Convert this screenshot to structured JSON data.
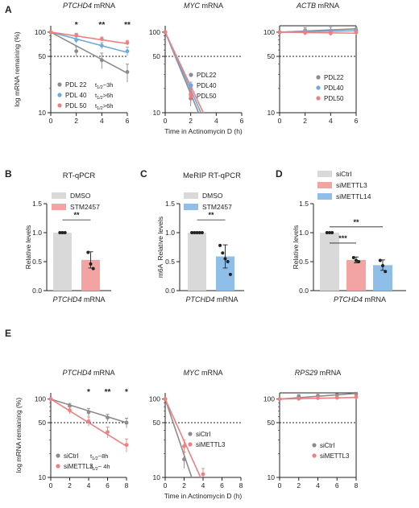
{
  "chart_data": [
    {
      "panel": "A",
      "type": "line",
      "title": "PTCHD4",
      "title_suffix": "mRNA",
      "ylabel": "log mRNA remaining (%)",
      "yscale": "log",
      "ylim": [
        10,
        120
      ],
      "yticks": [
        10,
        50,
        100
      ],
      "xlim": [
        0,
        6
      ],
      "xticks": [
        0,
        2,
        4,
        6
      ],
      "reference_line": 50,
      "legend": [
        {
          "name": "PDL 22",
          "note": "t1/2~3h"
        },
        {
          "name": "PDL 40",
          "note": "t1/2>6h"
        },
        {
          "name": "PDL 50",
          "note": "t1/2>6h"
        }
      ],
      "series": [
        {
          "name": "PDL 22",
          "color": "#8c8c8c",
          "x": [
            0,
            2,
            4,
            6
          ],
          "y": [
            100,
            58,
            45,
            32
          ],
          "err": [
            0,
            8,
            10,
            8
          ],
          "fit_end": 31
        },
        {
          "name": "PDL 40",
          "color": "#6fa8dc",
          "x": [
            0,
            2,
            4,
            6
          ],
          "y": [
            100,
            80,
            68,
            58
          ],
          "err": [
            0,
            7,
            6,
            7
          ],
          "fit_end": 56
        },
        {
          "name": "PDL 50",
          "color": "#f08080",
          "x": [
            0,
            2,
            4,
            6
          ],
          "y": [
            100,
            92,
            82,
            74
          ],
          "err": [
            0,
            5,
            5,
            5
          ],
          "fit_end": 72
        }
      ],
      "significance": [
        {
          "x": 2,
          "label": "*"
        },
        {
          "x": 4,
          "label": "**"
        },
        {
          "x": 6,
          "label": "**"
        }
      ]
    },
    {
      "panel": "A",
      "type": "line",
      "title": "MYC",
      "title_suffix": "mRNA",
      "yscale": "log",
      "ylim": [
        10,
        120
      ],
      "yticks": [
        10,
        50,
        100
      ],
      "xlim": [
        0,
        6
      ],
      "xticks": [
        0,
        2,
        4,
        6
      ],
      "reference_line": 50,
      "xlabel": "Time in Actinomycin D (h)",
      "legend": [
        {
          "name": "PDL22"
        },
        {
          "name": "PDL40"
        },
        {
          "name": "PDL50"
        }
      ],
      "series": [
        {
          "name": "PDL22",
          "color": "#8c8c8c",
          "x": [
            0,
            2
          ],
          "y": [
            100,
            15
          ],
          "err": [
            0,
            3
          ],
          "fit_end_x": 2.8
        },
        {
          "name": "PDL40",
          "color": "#6fa8dc",
          "x": [
            0,
            2
          ],
          "y": [
            100,
            20
          ],
          "err": [
            0,
            4
          ],
          "fit_end_x": 3.0
        },
        {
          "name": "PDL50",
          "color": "#f08080",
          "x": [
            0,
            2
          ],
          "y": [
            100,
            17
          ],
          "err": [
            0,
            4
          ],
          "fit_end_x": 3.2
        }
      ]
    },
    {
      "panel": "A",
      "type": "line",
      "title": "ACTB",
      "title_suffix": "mRNA",
      "yscale": "log",
      "ylim": [
        10,
        120
      ],
      "yticks": [
        10,
        50,
        100
      ],
      "xlim": [
        0,
        6
      ],
      "xticks": [
        0,
        2,
        4,
        6
      ],
      "reference_line": 50,
      "legend": [
        {
          "name": "PDL22"
        },
        {
          "name": "PDL40"
        },
        {
          "name": "PDL50"
        }
      ],
      "series": [
        {
          "name": "PDL22",
          "color": "#8c8c8c",
          "x": [
            0,
            2,
            4,
            6
          ],
          "y": [
            100,
            105,
            104,
            106
          ],
          "err": [
            0,
            9,
            11,
            8
          ],
          "fit_end": 110
        },
        {
          "name": "PDL40",
          "color": "#6fa8dc",
          "x": [
            0,
            2,
            4,
            6
          ],
          "y": [
            100,
            102,
            100,
            102
          ],
          "err": [
            0,
            7,
            8,
            7
          ],
          "fit_end": 104
        },
        {
          "name": "PDL50",
          "color": "#f08080",
          "x": [
            0,
            2,
            4,
            6
          ],
          "y": [
            100,
            98,
            97,
            99
          ],
          "err": [
            0,
            6,
            7,
            6
          ],
          "fit_end": 97
        }
      ]
    },
    {
      "panel": "B",
      "type": "bar",
      "title": "RT-qPCR",
      "ylabel": "Relative levels",
      "xlabel": "PTCHD4",
      "xlabel_suffix": "mRNA",
      "ylim": [
        0,
        1.5
      ],
      "yticks": [
        0,
        0.5,
        1.0,
        1.5
      ],
      "ytick_labels": [
        "0.0",
        "0.5",
        "1.0",
        "1.5"
      ],
      "legend": [
        {
          "name": "DMSO",
          "color": "#d9d9d9"
        },
        {
          "name": "STM2457",
          "color": "#f4a3a3"
        }
      ],
      "bars": [
        {
          "name": "DMSO",
          "value": 1.0,
          "err": 0,
          "points": [
            1.0,
            1.0,
            1.0
          ]
        },
        {
          "name": "STM2457",
          "value": 0.53,
          "err": 0.14,
          "points": [
            0.66,
            0.46,
            0.38
          ]
        }
      ],
      "significance": [
        {
          "label": "**"
        }
      ]
    },
    {
      "panel": "C",
      "type": "bar",
      "title": "MeRIP RT-qPCR",
      "ylabel": "m6A",
      "ylabel_suffix": "Relative levels",
      "xlabel": "PTCHD4",
      "xlabel_suffix": "mRNA",
      "ylim": [
        0,
        1.5
      ],
      "yticks": [
        0,
        0.5,
        1.0,
        1.5
      ],
      "ytick_labels": [
        "0.0",
        "0.5",
        "1.0",
        "1.5"
      ],
      "legend": [
        {
          "name": "DMSO",
          "color": "#d9d9d9"
        },
        {
          "name": "STM2457",
          "color": "#8fbfe8"
        }
      ],
      "bars": [
        {
          "name": "DMSO",
          "value": 1.0,
          "err": 0,
          "points": [
            1.0,
            1.0,
            1.0,
            1.0,
            1.0
          ]
        },
        {
          "name": "STM2457",
          "value": 0.59,
          "err": 0.2,
          "points": [
            0.78,
            0.65,
            0.55,
            0.5,
            0.28
          ]
        }
      ],
      "significance": [
        {
          "label": "**"
        }
      ]
    },
    {
      "panel": "D",
      "type": "bar",
      "ylabel": "Relative levels",
      "xlabel": "PTCHD4",
      "xlabel_suffix": "mRNA",
      "ylim": [
        0,
        1.5
      ],
      "yticks": [
        0,
        0.5,
        1.0,
        1.5
      ],
      "ytick_labels": [
        "0.0",
        "0.5",
        "1.0",
        "1.5"
      ],
      "legend": [
        {
          "name": "siCtrl",
          "color": "#d9d9d9"
        },
        {
          "name": "siMETTL3",
          "color": "#f4a3a3"
        },
        {
          "name": "siMETTL14",
          "color": "#8fbfe8"
        }
      ],
      "bars": [
        {
          "name": "siCtrl",
          "value": 1.0,
          "err": 0,
          "points": [
            1.0,
            1.0,
            1.0
          ]
        },
        {
          "name": "siMETTL3",
          "value": 0.53,
          "err": 0.05,
          "points": [
            0.57,
            0.52,
            0.5
          ]
        },
        {
          "name": "siMETTL14",
          "value": 0.44,
          "err": 0.09,
          "points": [
            0.52,
            0.43,
            0.33
          ]
        }
      ],
      "significance": [
        {
          "label": "***"
        },
        {
          "label": "**"
        }
      ]
    },
    {
      "panel": "E",
      "type": "line",
      "title": "PTCHD4",
      "title_suffix": "mRNA",
      "ylabel": "log mRNA remaining (%)",
      "yscale": "log",
      "ylim": [
        10,
        120
      ],
      "yticks": [
        10,
        50,
        100
      ],
      "xlim": [
        0,
        8
      ],
      "xticks": [
        0,
        2,
        4,
        6,
        8
      ],
      "reference_line": 50,
      "legend": [
        {
          "name": "siCtrl",
          "note": "t1/2~8h"
        },
        {
          "name": "siMETTL3",
          "note": "t1/2~ 4h"
        }
      ],
      "series": [
        {
          "name": "siCtrl",
          "color": "#8c8c8c",
          "x": [
            0,
            2,
            4,
            6,
            8
          ],
          "y": [
            100,
            82,
            68,
            58,
            50
          ],
          "err": [
            0,
            6,
            8,
            6,
            7
          ],
          "fit_end": 50
        },
        {
          "name": "siMETTL3",
          "color": "#f08080",
          "x": [
            0,
            2,
            4,
            6,
            8
          ],
          "y": [
            100,
            72,
            52,
            38,
            26
          ],
          "err": [
            0,
            7,
            7,
            6,
            5
          ],
          "fit_end": 25
        }
      ],
      "significance": [
        {
          "x": 4,
          "label": "*"
        },
        {
          "x": 6,
          "label": "**"
        },
        {
          "x": 8,
          "label": "*"
        }
      ]
    },
    {
      "panel": "E",
      "type": "line",
      "title": "MYC",
      "title_suffix": "mRNA",
      "yscale": "log",
      "ylim": [
        10,
        120
      ],
      "yticks": [
        10,
        50,
        100
      ],
      "xlim": [
        0,
        8
      ],
      "xticks": [
        0,
        2,
        4,
        6,
        8
      ],
      "reference_line": 50,
      "xlabel": "Time in Actinomycin D (h)",
      "legend": [
        {
          "name": "siCtrl"
        },
        {
          "name": "siMETTL3"
        }
      ],
      "series": [
        {
          "name": "siCtrl",
          "color": "#8c8c8c",
          "x": [
            0,
            2
          ],
          "y": [
            100,
            17
          ],
          "err": [
            0,
            4
          ],
          "fit_end_x": 3.0
        },
        {
          "name": "siMETTL3",
          "color": "#f08080",
          "x": [
            0,
            2,
            4
          ],
          "y": [
            100,
            25,
            11
          ],
          "err": [
            0,
            5,
            2
          ],
          "fit_end_x": 4.0
        }
      ]
    },
    {
      "panel": "E",
      "type": "line",
      "title": "RPS29",
      "title_suffix": "mRNA",
      "yscale": "log",
      "ylim": [
        10,
        120
      ],
      "yticks": [
        10,
        50,
        100
      ],
      "xlim": [
        0,
        8
      ],
      "xticks": [
        0,
        2,
        4,
        6,
        8
      ],
      "reference_line": 50,
      "legend": [
        {
          "name": "siCtrl"
        },
        {
          "name": "siMETTL3"
        }
      ],
      "series": [
        {
          "name": "siCtrl",
          "color": "#8c8c8c",
          "x": [
            0,
            2,
            4,
            6,
            8
          ],
          "y": [
            100,
            108,
            110,
            112,
            116
          ],
          "err": [
            0,
            6,
            5,
            5,
            6
          ],
          "fit_end": 118
        },
        {
          "name": "siMETTL3",
          "color": "#f08080",
          "x": [
            0,
            2,
            4,
            6,
            8
          ],
          "y": [
            100,
            101,
            103,
            104,
            106
          ],
          "err": [
            0,
            5,
            5,
            5,
            6
          ],
          "fit_end": 105
        }
      ]
    }
  ]
}
